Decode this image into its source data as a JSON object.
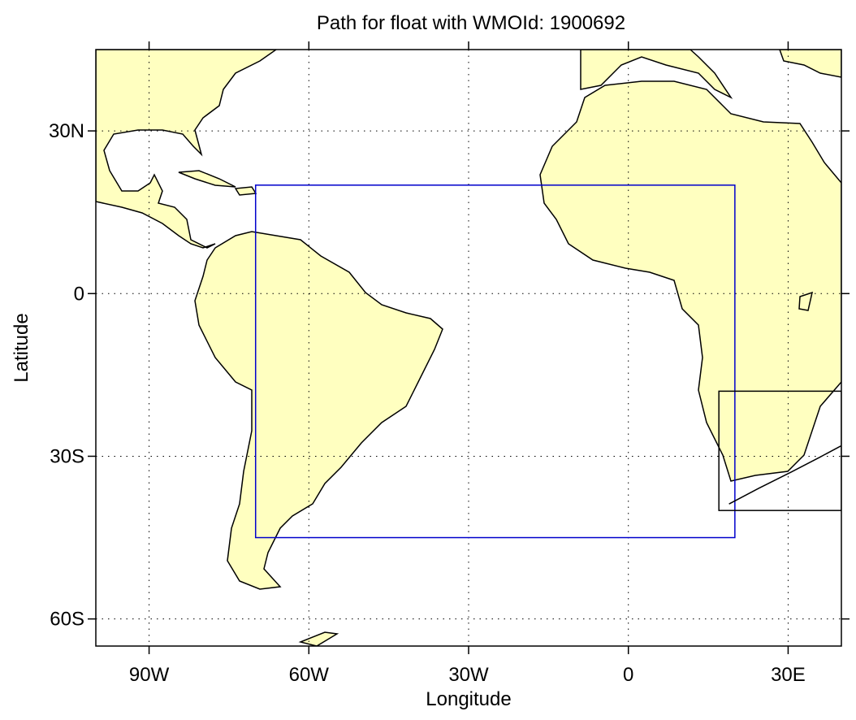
{
  "map": {
    "title": "Path for float with WMOId: 1900692",
    "xlabel": "Longitude",
    "ylabel": "Latitude",
    "xlim": [
      -100,
      40
    ],
    "ylim": [
      -65,
      45
    ],
    "xticks": [
      {
        "value": -90,
        "label": "90W"
      },
      {
        "value": -60,
        "label": "60W"
      },
      {
        "value": -30,
        "label": "30W"
      },
      0,
      {
        "value": 30,
        "label": "30E"
      }
    ],
    "yticks": [
      {
        "value": -60,
        "label": "60S"
      },
      {
        "value": -30,
        "label": "30S"
      },
      0,
      {
        "value": 30,
        "label": "30N"
      }
    ],
    "grid": true,
    "land_color": "#ffffc0",
    "boxes": [
      {
        "lon": [
          -70,
          20
        ],
        "lat": [
          -45,
          20
        ],
        "color": "#0000cc"
      },
      {
        "lon": [
          17,
          40
        ],
        "lat": [
          -40,
          -18
        ],
        "color": "#000000"
      }
    ],
    "float_path": {
      "lon": [
        18.9,
        24.5,
        30.6,
        35.9,
        39.9
      ],
      "lat": [
        -38.8,
        -35.9,
        -32.9,
        -30.2,
        -28.1
      ],
      "color": "#000000"
    }
  }
}
